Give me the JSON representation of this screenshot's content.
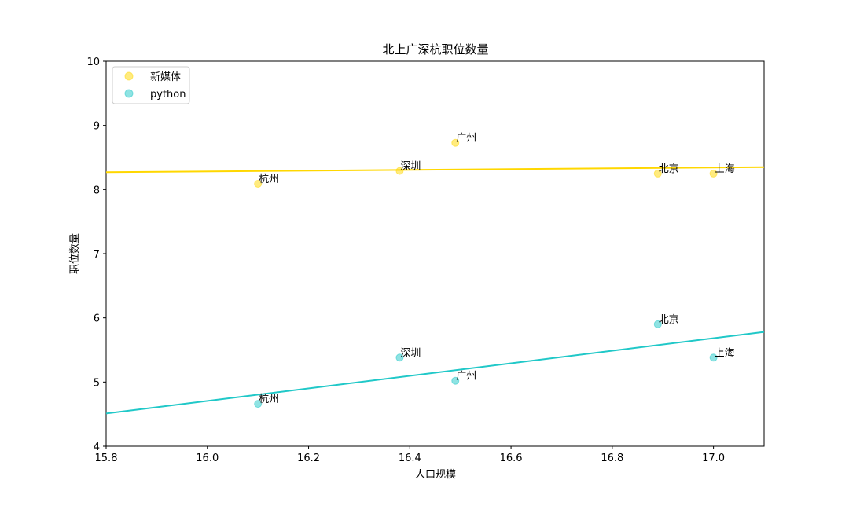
{
  "chart_data": {
    "type": "scatter",
    "title": "北上广深杭职位数量",
    "xlabel": "人口规模",
    "ylabel": "职位数量",
    "xlim": [
      15.8,
      17.1
    ],
    "ylim": [
      4,
      10
    ],
    "xticks": [
      "15.8",
      "16.0",
      "16.2",
      "16.4",
      "16.6",
      "16.8",
      "17.0"
    ],
    "yticks": [
      "4",
      "5",
      "6",
      "7",
      "8",
      "9",
      "10"
    ],
    "legend_position": "top-left",
    "grid": false,
    "series": [
      {
        "name": "新媒体",
        "color": "#FFD700",
        "points": [
          {
            "label": "杭州",
            "x": 16.1,
            "y": 8.09
          },
          {
            "label": "深圳",
            "x": 16.38,
            "y": 8.29
          },
          {
            "label": "广州",
            "x": 16.49,
            "y": 8.73
          },
          {
            "label": "北京",
            "x": 16.89,
            "y": 8.25
          },
          {
            "label": "上海",
            "x": 17.0,
            "y": 8.25
          }
        ],
        "trendline": {
          "x": [
            15.8,
            17.1
          ],
          "y": [
            8.27,
            8.35
          ]
        }
      },
      {
        "name": "python",
        "color": "#20C8C8",
        "points": [
          {
            "label": "杭州",
            "x": 16.1,
            "y": 4.66
          },
          {
            "label": "深圳",
            "x": 16.38,
            "y": 5.38
          },
          {
            "label": "广州",
            "x": 16.49,
            "y": 5.02
          },
          {
            "label": "北京",
            "x": 16.89,
            "y": 5.9
          },
          {
            "label": "上海",
            "x": 17.0,
            "y": 5.38
          }
        ],
        "trendline": {
          "x": [
            15.8,
            17.1
          ],
          "y": [
            4.51,
            5.78
          ]
        }
      }
    ]
  }
}
